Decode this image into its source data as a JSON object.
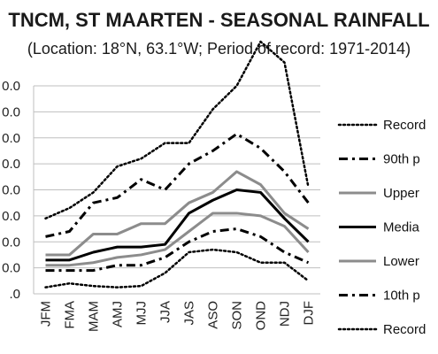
{
  "chart_data": {
    "type": "line",
    "title": "TNCM, ST MAARTEN - SEASONAL RAINFALL",
    "subtitle": "(Location: 18°N, 63.1°W; Period of record: 1971-2014)",
    "categories": [
      "JFM",
      "FMA",
      "MAM",
      "AMJ",
      "MJJ",
      "JJA",
      "JAS",
      "ASO",
      "SON",
      "OND",
      "NDJ",
      "DJF"
    ],
    "y_tick_labels": [
      ".0",
      "0.0",
      "0.0",
      "0.0",
      "0.0",
      "0.0",
      "0.0",
      "0.0",
      "0.0"
    ],
    "ylim": [
      0,
      800
    ],
    "grid": true,
    "legend_position": "right",
    "series": [
      {
        "name": "Record",
        "style": "dotted",
        "color": "#000000",
        "width": 2.5,
        "values": [
          290,
          330,
          390,
          490,
          520,
          580,
          580,
          710,
          800,
          970,
          890,
          410
        ]
      },
      {
        "name": "90th p",
        "style": "dashdot",
        "color": "#000000",
        "width": 3,
        "values": [
          220,
          240,
          350,
          370,
          440,
          400,
          500,
          550,
          615,
          560,
          470,
          350
        ]
      },
      {
        "name": "Upper",
        "style": "solid",
        "color": "#8c8c8c",
        "width": 3,
        "values": [
          150,
          150,
          230,
          230,
          270,
          270,
          350,
          390,
          470,
          420,
          310,
          250
        ]
      },
      {
        "name": "Media",
        "style": "solid",
        "color": "#000000",
        "width": 3,
        "values": [
          130,
          130,
          160,
          180,
          180,
          190,
          310,
          360,
          400,
          390,
          290,
          200
        ]
      },
      {
        "name": "Lower",
        "style": "solid",
        "color": "#8c8c8c",
        "width": 3,
        "values": [
          110,
          110,
          120,
          140,
          150,
          170,
          240,
          310,
          310,
          300,
          260,
          160
        ]
      },
      {
        "name": "10th p",
        "style": "dashdot",
        "color": "#000000",
        "width": 3,
        "values": [
          90,
          90,
          90,
          110,
          110,
          140,
          200,
          240,
          250,
          220,
          160,
          120
        ]
      },
      {
        "name": "Record",
        "style": "dotted",
        "color": "#000000",
        "width": 2.5,
        "values": [
          25,
          40,
          30,
          25,
          30,
          80,
          160,
          170,
          160,
          120,
          120,
          50
        ]
      }
    ]
  }
}
